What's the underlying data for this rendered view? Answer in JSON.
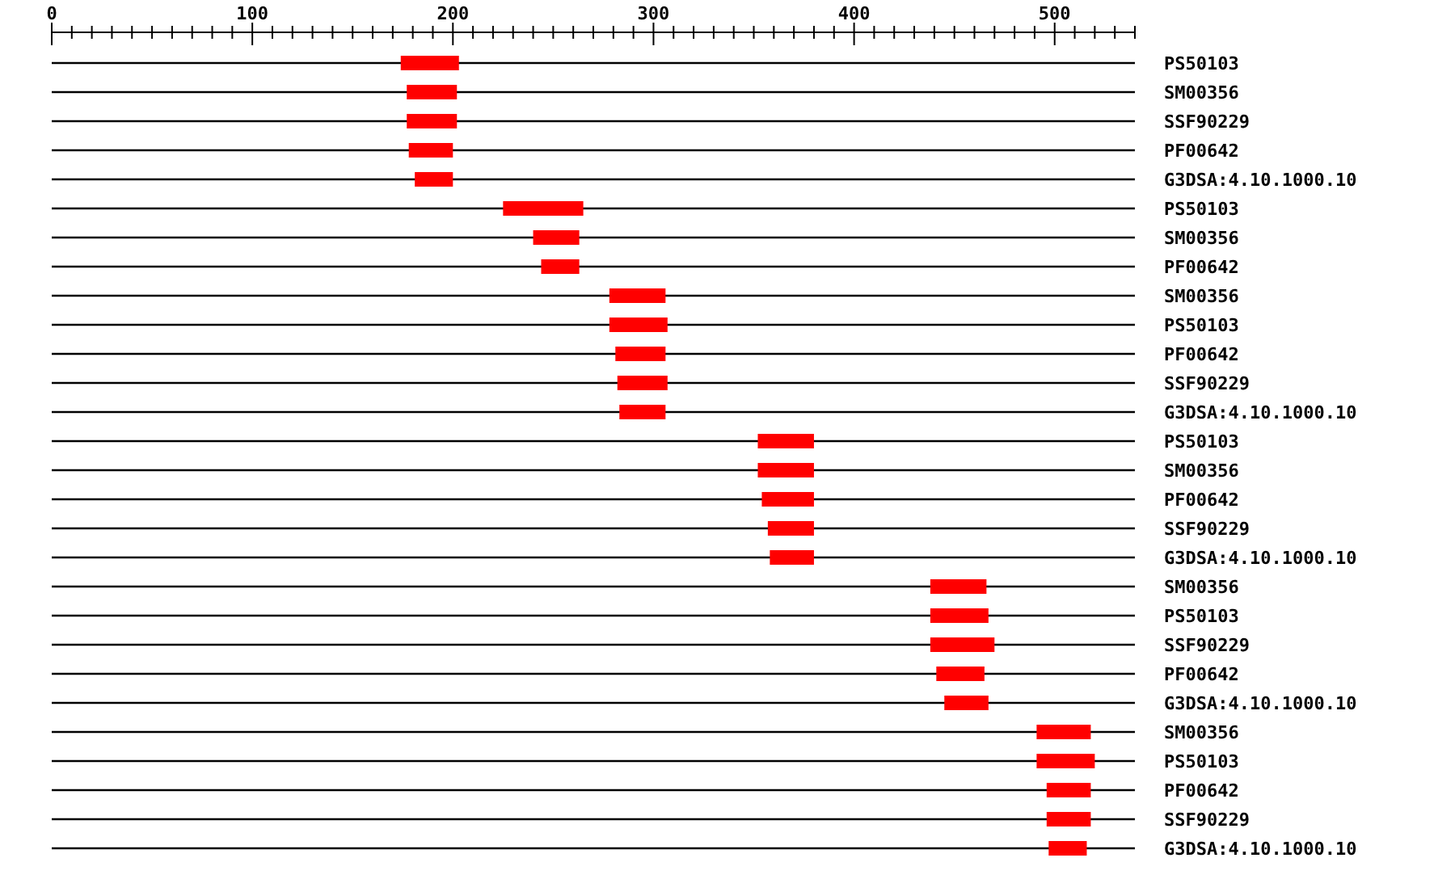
{
  "chart_data": {
    "type": "bar",
    "orientation": "horizontal",
    "categories": [
      "PS50103",
      "SM00356",
      "SSF90229",
      "PF00642",
      "G3DSA:4.10.1000.10",
      "PS50103",
      "SM00356",
      "PF00642",
      "SM00356",
      "PS50103",
      "PF00642",
      "SSF90229",
      "G3DSA:4.10.1000.10",
      "PS50103",
      "SM00356",
      "PF00642",
      "SSF90229",
      "G3DSA:4.10.1000.10",
      "SM00356",
      "PS50103",
      "SSF90229",
      "PF00642",
      "G3DSA:4.10.1000.10",
      "SM00356",
      "PS50103",
      "PF00642",
      "SSF90229",
      "G3DSA:4.10.1000.10"
    ],
    "base": [
      174,
      177,
      177,
      178,
      181,
      225,
      240,
      244,
      278,
      278,
      281,
      282,
      283,
      352,
      352,
      354,
      357,
      358,
      438,
      438,
      438,
      441,
      445,
      491,
      491,
      496,
      496,
      497
    ],
    "values": [
      29,
      25,
      25,
      22,
      19,
      40,
      23,
      19,
      28,
      29,
      25,
      25,
      23,
      28,
      28,
      26,
      23,
      22,
      28,
      29,
      32,
      24,
      22,
      27,
      29,
      22,
      22,
      19
    ],
    "color": "#ff0000",
    "xlim": [
      0,
      540
    ],
    "xticks": [
      0,
      {
        "value": 10,
        "label": null
      },
      {
        "value": 20,
        "label": null
      },
      {
        "value": 30,
        "label": null
      },
      {
        "value": 40,
        "label": null
      },
      {
        "value": 50,
        "label": null
      },
      {
        "value": 60,
        "label": null
      },
      {
        "value": 70,
        "label": null
      },
      {
        "value": 80,
        "label": null
      },
      {
        "value": 90,
        "label": null
      },
      100,
      {
        "value": 110,
        "label": null
      },
      {
        "value": 120,
        "label": null
      },
      {
        "value": 130,
        "label": null
      },
      {
        "value": 140,
        "label": null
      },
      {
        "value": 150,
        "label": null
      },
      {
        "value": 160,
        "label": null
      },
      {
        "value": 170,
        "label": null
      },
      {
        "value": 180,
        "label": null
      },
      {
        "value": 190,
        "label": null
      },
      200,
      {
        "value": 210,
        "label": null
      },
      {
        "value": 220,
        "label": null
      },
      {
        "value": 230,
        "label": null
      },
      {
        "value": 240,
        "label": null
      },
      {
        "value": 250,
        "label": null
      },
      {
        "value": 260,
        "label": null
      },
      {
        "value": 270,
        "label": null
      },
      {
        "value": 280,
        "label": null
      },
      {
        "value": 290,
        "label": null
      },
      300,
      {
        "value": 310,
        "label": null
      },
      {
        "value": 320,
        "label": null
      },
      {
        "value": 330,
        "label": null
      },
      {
        "value": 340,
        "label": null
      },
      {
        "value": 350,
        "label": null
      },
      {
        "value": 360,
        "label": null
      },
      {
        "value": 370,
        "label": null
      },
      {
        "value": 380,
        "label": null
      },
      {
        "value": 390,
        "label": null
      },
      400,
      {
        "value": 410,
        "label": null
      },
      {
        "value": 420,
        "label": null
      },
      {
        "value": 430,
        "label": null
      },
      {
        "value": 440,
        "label": null
      },
      {
        "value": 450,
        "label": null
      },
      {
        "value": 460,
        "label": null
      },
      {
        "value": 470,
        "label": null
      },
      {
        "value": 480,
        "label": null
      },
      {
        "value": 490,
        "label": null
      },
      500,
      {
        "value": 510,
        "label": null
      },
      {
        "value": 520,
        "label": null
      },
      {
        "value": 530,
        "label": null
      },
      {
        "value": 540,
        "label": null
      }
    ],
    "grid": "y"
  }
}
